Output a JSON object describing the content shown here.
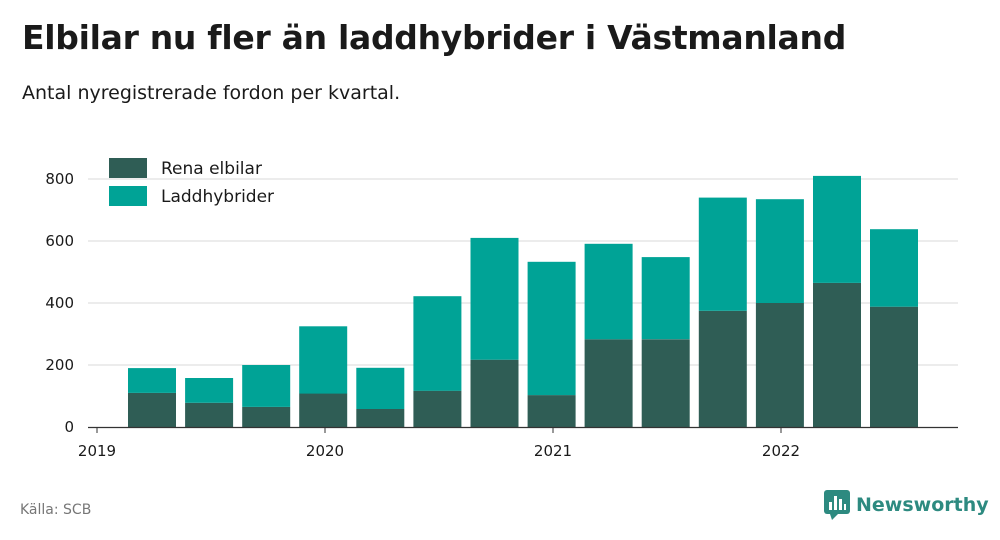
{
  "header": {
    "title": "Elbilar nu fler än laddhybrider i Västmanland",
    "subtitle": "Antal nyregistrerade fordon per kvartal."
  },
  "footer": {
    "source": "Källa: SCB",
    "brand": "Newsworthy"
  },
  "colors": {
    "series_1": "#2f5d55",
    "series_2": "#00a396",
    "grid": "#d9d9d9",
    "axis": "#333333",
    "brand": "#2d8a80"
  },
  "chart_data": {
    "type": "bar",
    "stacked": true,
    "title": "Elbilar nu fler än laddhybrider i Västmanland",
    "subtitle": "Antal nyregistrerade fordon per kvartal.",
    "categories": [
      "2019-Q2",
      "2019-Q3",
      "2019-Q4",
      "2020-Q1",
      "2020-Q2",
      "2020-Q3",
      "2020-Q4",
      "2021-Q1",
      "2021-Q2",
      "2021-Q3",
      "2021-Q4",
      "2022-Q1",
      "2022-Q2",
      "2022-Q3"
    ],
    "x_tick_labels": [
      "2019",
      "2020",
      "2021",
      "2022"
    ],
    "y_ticks": [
      0,
      200,
      400,
      600,
      800
    ],
    "ylim": [
      0,
      830
    ],
    "grid": true,
    "legend_position": "top-left",
    "series": [
      {
        "name": "Rena elbilar",
        "color": "#2f5d55",
        "values": [
          110,
          78,
          65,
          108,
          58,
          117,
          217,
          103,
          283,
          283,
          375,
          400,
          465,
          388
        ]
      },
      {
        "name": "Laddhybrider",
        "color": "#00a396",
        "values": [
          80,
          80,
          135,
          217,
          133,
          305,
          393,
          430,
          308,
          265,
          365,
          335,
          345,
          250
        ]
      }
    ]
  }
}
